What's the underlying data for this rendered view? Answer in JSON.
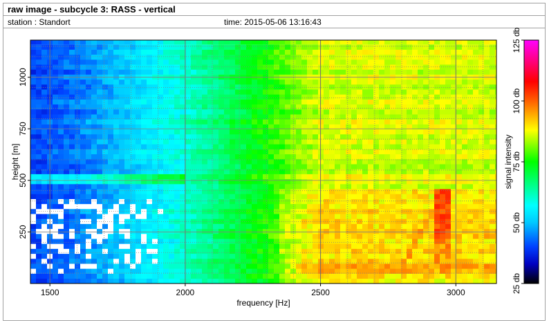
{
  "header": {
    "title": "raw image - subcycle 3: RASS - vertical",
    "station": "station : Standort",
    "time": "time: 2015-05-06 13:16:43"
  },
  "chart_data": {
    "type": "heatmap",
    "xlabel": "frequency [Hz]",
    "ylabel": "height [m]",
    "xlim": [
      1428,
      3150
    ],
    "ylim": [
      0,
      1180
    ],
    "xticks": [
      1500,
      2000,
      2500,
      3000
    ],
    "xtick_labels": [
      "1500",
      "2000",
      "2500",
      "3000"
    ],
    "yticks": [
      250,
      500,
      750,
      1000
    ],
    "ytick_labels": [
      "250",
      "500",
      "750",
      "1000"
    ],
    "grid": true,
    "colorbar": {
      "label": "signal intensity",
      "range": [
        25,
        125
      ],
      "ticks": [
        25,
        50,
        75,
        100,
        125
      ],
      "tick_labels": [
        "25 db",
        "50 db",
        "75 db",
        "100 db",
        "125 db"
      ],
      "colors": [
        "#000000",
        "#0000c0",
        "#0040ff",
        "#00c8ff",
        "#00ffff",
        "#00ff00",
        "#ffff00",
        "#ff6000",
        "#ff0000",
        "#ff00ff"
      ],
      "stops": [
        25,
        33,
        40,
        50,
        57,
        75,
        88,
        100,
        108,
        125
      ]
    }
  }
}
